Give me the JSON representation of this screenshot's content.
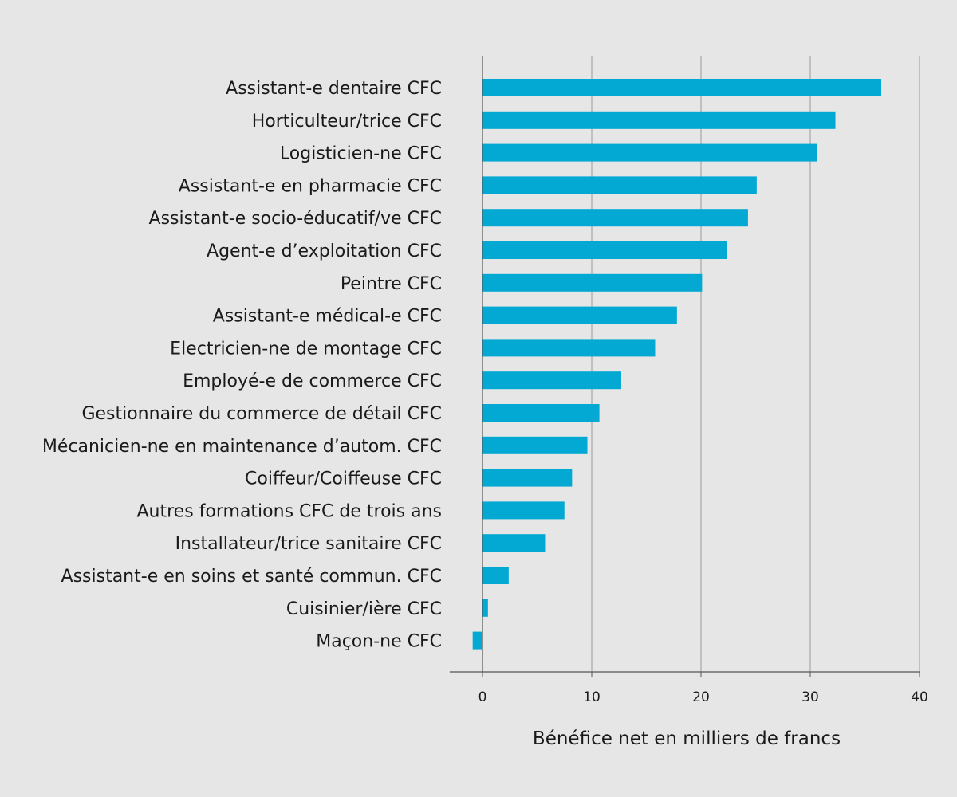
{
  "chart_data": {
    "type": "bar",
    "orientation": "horizontal",
    "title": "",
    "xlabel": "Bénéfice net en milliers de francs",
    "ylabel": "",
    "xlim": [
      -3,
      40
    ],
    "xticks": [
      0,
      10,
      20,
      30,
      40
    ],
    "xtick_labels": [
      "0",
      "10",
      "20",
      "30",
      "40"
    ],
    "grid": "vertical",
    "bar_color": "#03a9d3",
    "categories": [
      "Assistant-e dentaire CFC",
      "Horticulteur/trice CFC",
      "Logisticien-ne CFC",
      "Assistant-e en pharmacie CFC",
      "Assistant-e socio-éducatif/ve CFC",
      "Agent-e d’exploitation CFC",
      "Peintre CFC",
      "Assistant-e médical-e CFC",
      "Electricien-ne de montage CFC",
      "Employé-e de commerce CFC",
      "Gestionnaire du commerce de détail CFC",
      "Mécanicien-ne en maintenance d’autom. CFC",
      "Coiffeur/Coiffeuse CFC",
      "Autres formations CFC de trois ans",
      "Installateur/trice sanitaire CFC",
      "Assistant-e en soins et santé commun. CFC",
      "Cuisinier/ière CFC",
      "Maçon-ne CFC"
    ],
    "values": [
      36.5,
      32.3,
      30.6,
      25.1,
      24.3,
      22.4,
      20.1,
      17.8,
      15.8,
      12.7,
      10.7,
      9.6,
      8.2,
      7.5,
      5.8,
      2.4,
      0.5,
      -0.9
    ]
  }
}
